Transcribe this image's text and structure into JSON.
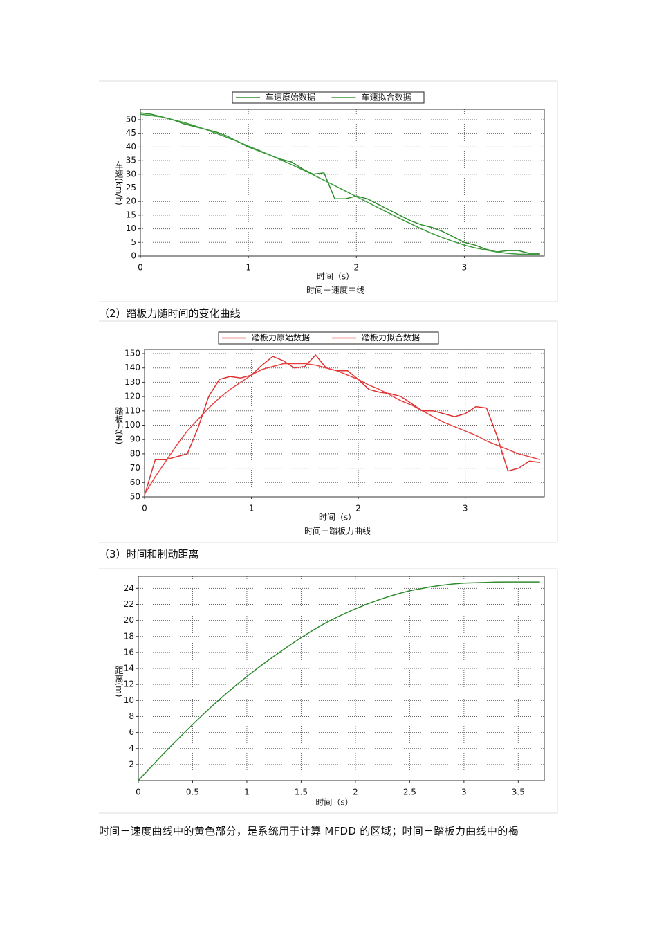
{
  "document": {
    "heading_2": "（2）踏板力随时间的变化曲线",
    "heading_3": "（3）时间和制动距离",
    "paragraph": "时间－速度曲线中的黄色部分，是系统用于计算 MFDD 的区域；时间－踏板力曲线中的褐"
  },
  "chart_data": [
    {
      "type": "line",
      "x_label": "时间（s）",
      "y_label": "车速(km/h)",
      "caption": "时间－速度曲线",
      "legend": "top",
      "grid": true,
      "x": [
        0,
        0.1,
        0.2,
        0.3,
        0.4,
        0.5,
        0.6,
        0.7,
        0.8,
        0.9,
        1.0,
        1.1,
        1.2,
        1.3,
        1.4,
        1.5,
        1.6,
        1.7,
        1.8,
        1.9,
        2.0,
        2.1,
        2.2,
        2.3,
        2.4,
        2.5,
        2.6,
        2.7,
        2.8,
        2.9,
        3.0,
        3.1,
        3.2,
        3.3,
        3.4,
        3.5,
        3.6,
        3.7
      ],
      "series": [
        {
          "name": "车速原始数据",
          "color": "#2e8b2e",
          "values": [
            52.5,
            52,
            51,
            50,
            48.5,
            47.5,
            46.5,
            45.5,
            44,
            42,
            40,
            38.5,
            37,
            35.5,
            34.5,
            32,
            30,
            30.5,
            21,
            21,
            22,
            21,
            19,
            17,
            15,
            13,
            11.5,
            10.5,
            9,
            7,
            5,
            4,
            2.5,
            1.5,
            2,
            2,
            1,
            1
          ]
        },
        {
          "name": "车速拟合数据",
          "color": "#3a9a3a",
          "values": [
            52,
            51.5,
            51,
            50,
            49,
            47.8,
            46.5,
            45,
            43.5,
            42,
            40.3,
            38.7,
            37,
            35.3,
            33.5,
            31.7,
            29.8,
            27.8,
            25.8,
            23.8,
            21.8,
            19.8,
            17.8,
            15.8,
            13.8,
            11.9,
            10,
            8.3,
            6.7,
            5.3,
            4,
            3,
            2.2,
            1.5,
            1,
            0.7,
            0.6,
            0.6
          ]
        }
      ],
      "xlim": [
        0,
        3.74
      ],
      "ylim": [
        0,
        53.8
      ],
      "xticks": [
        0,
        1,
        2,
        3
      ],
      "yticks": [
        0,
        5,
        10,
        15,
        20,
        25,
        30,
        35,
        40,
        45,
        50
      ]
    },
    {
      "type": "line",
      "x_label": "时间（s）",
      "y_label": "踏板力(N)",
      "caption": "时间－踏板力曲线",
      "legend": "top",
      "grid": true,
      "x": [
        0,
        0.1,
        0.2,
        0.3,
        0.4,
        0.5,
        0.6,
        0.7,
        0.8,
        0.9,
        1.0,
        1.1,
        1.2,
        1.3,
        1.4,
        1.5,
        1.6,
        1.7,
        1.8,
        1.9,
        2.0,
        2.1,
        2.2,
        2.3,
        2.4,
        2.5,
        2.6,
        2.7,
        2.8,
        2.9,
        3.0,
        3.1,
        3.2,
        3.3,
        3.4,
        3.5,
        3.6,
        3.7
      ],
      "series": [
        {
          "name": "踏板力原始数据",
          "color": "#e03030",
          "values": [
            51,
            76,
            76,
            78,
            80,
            98,
            120,
            132,
            134,
            133,
            135,
            142,
            148,
            145,
            140,
            141,
            149,
            140,
            138,
            138,
            132,
            125,
            123,
            122,
            120,
            115,
            110,
            110,
            108,
            106,
            108,
            113,
            112,
            92,
            68,
            70,
            75,
            74
          ]
        },
        {
          "name": "踏板力拟合数据",
          "color": "#e84040",
          "values": [
            52,
            64,
            75,
            86,
            96,
            104,
            112,
            119,
            125,
            130,
            135,
            139,
            141,
            143,
            143,
            143,
            142,
            140,
            138,
            135,
            132,
            128,
            125,
            121,
            117,
            114,
            110,
            106,
            102,
            99,
            96,
            93,
            89,
            86,
            83,
            80,
            78,
            76
          ]
        }
      ],
      "xlim": [
        0,
        3.74
      ],
      "ylim": [
        50,
        152.9
      ],
      "xticks": [
        0,
        1,
        2,
        3
      ],
      "yticks": [
        50,
        60,
        70,
        80,
        90,
        100,
        110,
        120,
        130,
        140,
        150
      ]
    },
    {
      "type": "line",
      "x_label": "时间（s）",
      "y_label": "距离(m)",
      "grid": true,
      "x": [
        0,
        0.1,
        0.2,
        0.3,
        0.4,
        0.5,
        0.6,
        0.7,
        0.8,
        0.9,
        1.0,
        1.1,
        1.2,
        1.3,
        1.4,
        1.5,
        1.6,
        1.7,
        1.8,
        1.9,
        2.0,
        2.1,
        2.2,
        2.3,
        2.4,
        2.5,
        2.6,
        2.7,
        2.8,
        2.9,
        3.0,
        3.1,
        3.2,
        3.3,
        3.4,
        3.5,
        3.6,
        3.7
      ],
      "series": [
        {
          "color": "#2e8b2e",
          "values": [
            0,
            1.45,
            2.9,
            4.3,
            5.65,
            7,
            8.3,
            9.55,
            10.75,
            11.9,
            13,
            14.05,
            15.05,
            16,
            16.95,
            17.85,
            18.7,
            19.5,
            20.2,
            20.85,
            21.45,
            22,
            22.5,
            22.95,
            23.35,
            23.7,
            23.95,
            24.2,
            24.4,
            24.55,
            24.65,
            24.7,
            24.75,
            24.78,
            24.8,
            24.8,
            24.8,
            24.8
          ]
        }
      ],
      "xlim": [
        0,
        3.74
      ],
      "ylim": [
        0,
        25.5
      ],
      "xticks": [
        0,
        0.5,
        1,
        1.5,
        2,
        2.5,
        3,
        3.5
      ],
      "yticks": [
        2,
        4,
        6,
        8,
        10,
        12,
        14,
        16,
        18,
        20,
        22,
        24
      ]
    }
  ]
}
